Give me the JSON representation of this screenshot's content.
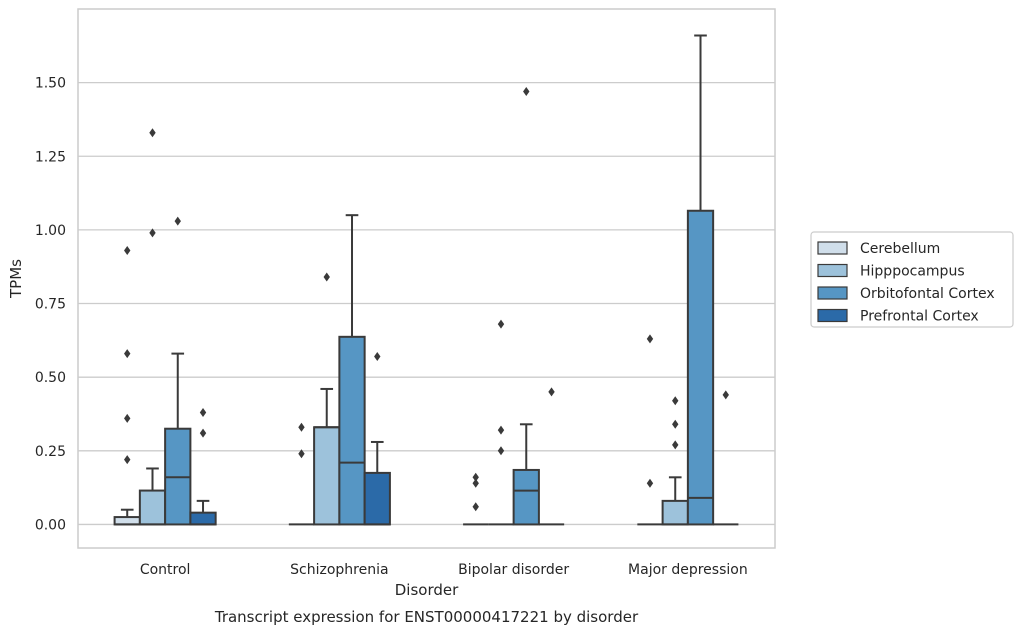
{
  "chart_data": {
    "type": "boxplot",
    "title": "",
    "caption": "Transcript expression for ENST00000417221 by disorder",
    "xlabel": "Disorder",
    "ylabel": "TPMs",
    "ylim": [
      -0.08,
      1.75
    ],
    "yticks": [
      0.0,
      0.25,
      0.5,
      0.75,
      1.0,
      1.25,
      1.5
    ],
    "ytick_labels": [
      "0.00",
      "0.25",
      "0.50",
      "0.75",
      "1.00",
      "1.25",
      "1.50"
    ],
    "grid": "horizontal",
    "legend_position": "right",
    "categories": [
      "Control",
      "Schizophrenia",
      "Bipolar disorder",
      "Major depression"
    ],
    "series": [
      {
        "name": "Cerebellum",
        "color": "#d0deea",
        "boxes": [
          {
            "q1": 0.0,
            "median": 0.0,
            "q3": 0.025,
            "whisker_low": 0.0,
            "whisker_high": 0.05,
            "outliers": [
              0.22,
              0.36,
              0.58,
              0.93
            ]
          },
          {
            "q1": 0.0,
            "median": 0.0,
            "q3": 0.0,
            "whisker_low": 0.0,
            "whisker_high": 0.0,
            "outliers": [
              0.24,
              0.33
            ]
          },
          {
            "q1": 0.0,
            "median": 0.0,
            "q3": 0.0,
            "whisker_low": 0.0,
            "whisker_high": 0.0,
            "outliers": [
              0.06,
              0.14,
              0.16
            ]
          },
          {
            "q1": 0.0,
            "median": 0.0,
            "q3": 0.0,
            "whisker_low": 0.0,
            "whisker_high": 0.0,
            "outliers": [
              0.14,
              0.63
            ]
          }
        ]
      },
      {
        "name": "Hipppocampus",
        "color": "#9dc2db",
        "boxes": [
          {
            "q1": 0.0,
            "median": 0.0,
            "q3": 0.115,
            "whisker_low": 0.0,
            "whisker_high": 0.19,
            "outliers": [
              0.99,
              1.33
            ]
          },
          {
            "q1": 0.0,
            "median": 0.33,
            "q3": 0.33,
            "whisker_low": 0.0,
            "whisker_high": 0.46,
            "outliers": [
              0.84
            ]
          },
          {
            "q1": 0.0,
            "median": 0.0,
            "q3": 0.0,
            "whisker_low": 0.0,
            "whisker_high": 0.0,
            "outliers": [
              0.25,
              0.32,
              0.68
            ]
          },
          {
            "q1": 0.0,
            "median": 0.0,
            "q3": 0.08,
            "whisker_low": 0.0,
            "whisker_high": 0.16,
            "outliers": [
              0.27,
              0.34,
              0.42
            ]
          }
        ]
      },
      {
        "name": "Orbitofontal Cortex",
        "color": "#5696c4",
        "boxes": [
          {
            "q1": 0.0,
            "median": 0.16,
            "q3": 0.325,
            "whisker_low": 0.0,
            "whisker_high": 0.58,
            "outliers": [
              1.03
            ]
          },
          {
            "q1": 0.0,
            "median": 0.21,
            "q3": 0.637,
            "whisker_low": 0.0,
            "whisker_high": 1.05,
            "outliers": []
          },
          {
            "q1": 0.0,
            "median": 0.115,
            "q3": 0.185,
            "whisker_low": 0.0,
            "whisker_high": 0.34,
            "outliers": [
              1.47
            ]
          },
          {
            "q1": 0.0,
            "median": 0.09,
            "q3": 1.065,
            "whisker_low": 0.0,
            "whisker_high": 1.66,
            "outliers": []
          }
        ]
      },
      {
        "name": "Prefrontal Cortex",
        "color": "#2b6aa8",
        "boxes": [
          {
            "q1": 0.0,
            "median": 0.0,
            "q3": 0.04,
            "whisker_low": 0.0,
            "whisker_high": 0.08,
            "outliers": [
              0.31,
              0.38
            ]
          },
          {
            "q1": 0.0,
            "median": 0.0,
            "q3": 0.175,
            "whisker_low": 0.0,
            "whisker_high": 0.28,
            "outliers": [
              0.57
            ]
          },
          {
            "q1": 0.0,
            "median": 0.0,
            "q3": 0.0,
            "whisker_low": 0.0,
            "whisker_high": 0.0,
            "outliers": [
              0.45
            ]
          },
          {
            "q1": 0.0,
            "median": 0.0,
            "q3": 0.0,
            "whisker_low": 0.0,
            "whisker_high": 0.0,
            "outliers": [
              0.44
            ]
          }
        ]
      }
    ]
  }
}
